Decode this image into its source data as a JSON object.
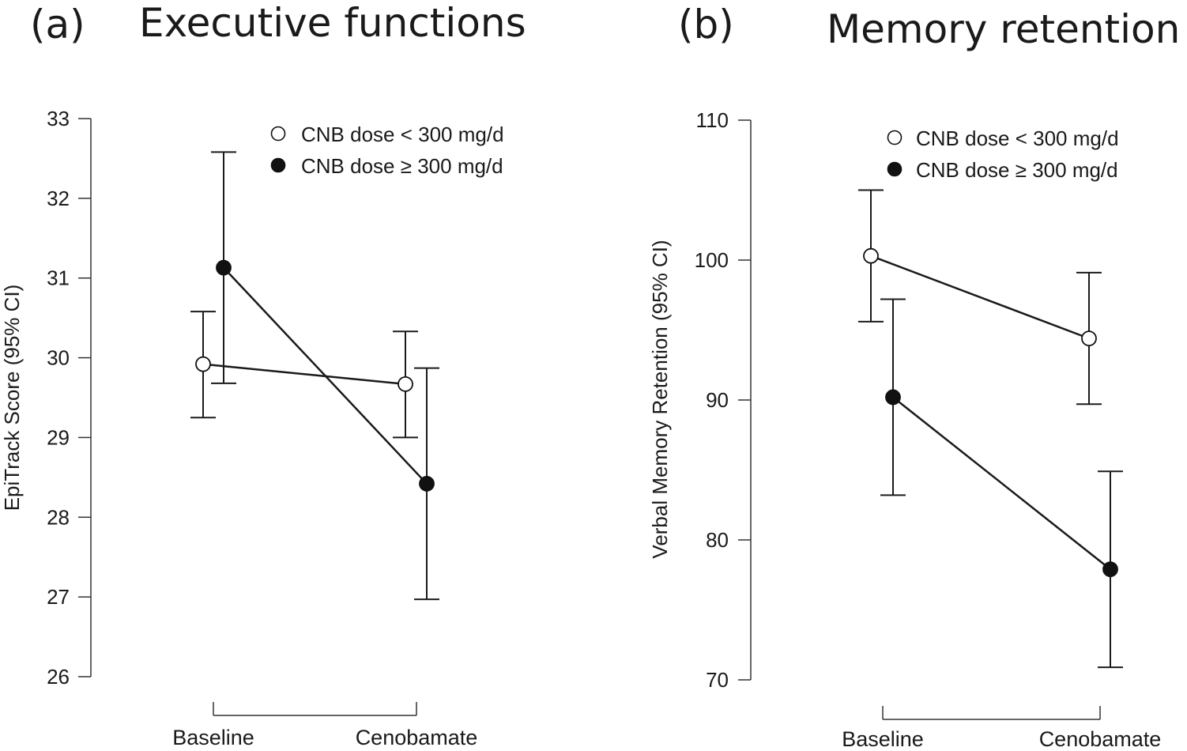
{
  "chart_data": [
    {
      "type": "line",
      "panel_label": "(a)",
      "title": "Executive functions",
      "ylabel": "EpiTrack Score (95% CI)",
      "xlabel": "",
      "categories": [
        "Baseline",
        "Cenobamate"
      ],
      "ylim": [
        26,
        33
      ],
      "yticks": [
        26,
        27,
        28,
        29,
        30,
        31,
        32,
        33
      ],
      "grid": false,
      "legend_position": "top-right",
      "series": [
        {
          "name": "CNB dose < 300 mg/d",
          "marker": "open",
          "values": [
            29.92,
            29.67
          ],
          "ci_low": [
            29.25,
            29.0
          ],
          "ci_high": [
            30.58,
            30.33
          ]
        },
        {
          "name": "CNB dose ≥ 300 mg/d",
          "marker": "filled",
          "values": [
            31.13,
            28.42
          ],
          "ci_low": [
            29.68,
            26.97
          ],
          "ci_high": [
            32.58,
            29.87
          ]
        }
      ]
    },
    {
      "type": "line",
      "panel_label": "(b)",
      "title": "Memory retention",
      "ylabel": "Verbal Memory Retention (95% CI)",
      "xlabel": "",
      "categories": [
        "Baseline",
        "Cenobamate"
      ],
      "ylim": [
        70,
        110
      ],
      "yticks": [
        70,
        80,
        90,
        100,
        110
      ],
      "grid": false,
      "legend_position": "top-right",
      "series": [
        {
          "name": "CNB dose < 300 mg/d",
          "marker": "open",
          "values": [
            100.3,
            94.4
          ],
          "ci_low": [
            95.6,
            89.7
          ],
          "ci_high": [
            105.0,
            99.1
          ]
        },
        {
          "name": "CNB dose ≥ 300 mg/d",
          "marker": "filled",
          "values": [
            90.2,
            77.9
          ],
          "ci_low": [
            83.2,
            70.9
          ],
          "ci_high": [
            97.2,
            84.9
          ]
        }
      ]
    }
  ]
}
